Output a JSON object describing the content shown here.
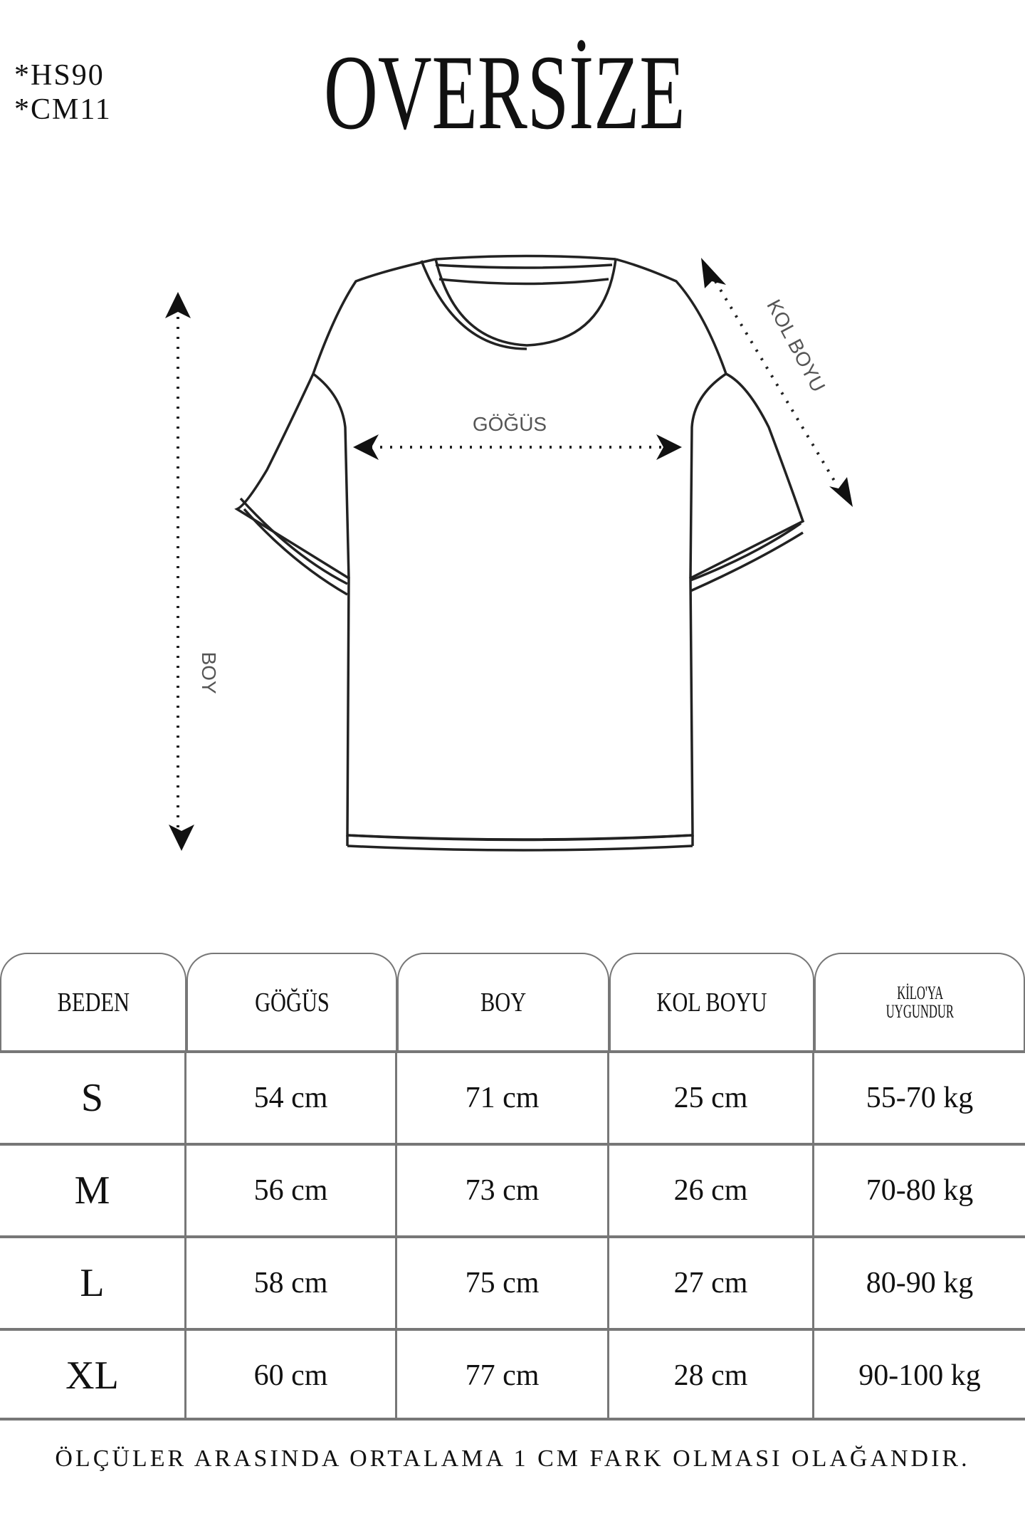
{
  "codes": [
    "*HS90",
    "*CM11"
  ],
  "title": "OVERSİZE",
  "diagram": {
    "chest_label": "GÖĞÜS",
    "length_label": "BOY",
    "sleeve_label": "KOL BOYU"
  },
  "table": {
    "headers": [
      "BEDEN",
      "GÖĞÜS",
      "BOY",
      "KOL BOYU",
      "KİLO'YA UYGUNDUR"
    ],
    "header_kilo_lines": [
      "KİLO'YA",
      "UYGUNDUR"
    ],
    "rows": [
      [
        "S",
        "54 cm",
        "71 cm",
        "25  cm",
        "55-70 kg"
      ],
      [
        "M",
        "56 cm",
        "73 cm",
        "26 cm",
        "70-80 kg"
      ],
      [
        "L",
        "58 cm",
        "75 cm",
        "27 cm",
        "80-90 kg"
      ],
      [
        "XL",
        "60 cm",
        "77 cm",
        "28 cm",
        "90-100 kg"
      ]
    ]
  },
  "footer": "ÖLÇÜLER ARASINDA ORTALAMA 1 CM FARK OLMASI OLAĞANDIR."
}
